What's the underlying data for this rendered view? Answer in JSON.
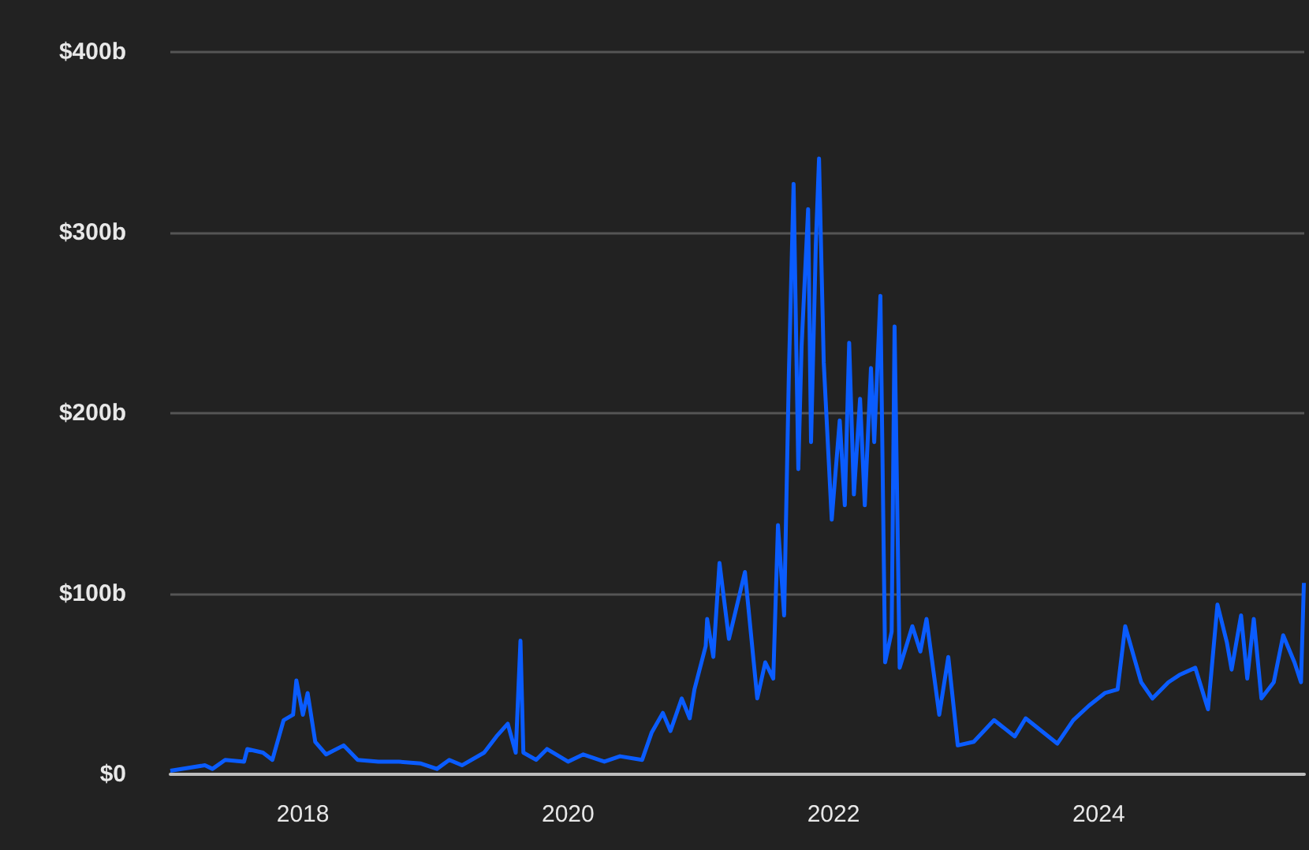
{
  "chart_data": {
    "type": "line",
    "x": [
      "2017-01-01",
      "2017-04-06",
      "2017-04-27",
      "2017-06-01",
      "2017-07-23",
      "2017-08-01",
      "2017-09-13",
      "2017-10-09",
      "2017-11-09",
      "2017-12-05",
      "2017-12-14",
      "2018-01-01",
      "2018-01-14",
      "2018-02-04",
      "2018-03-06",
      "2018-04-23",
      "2018-06-01",
      "2018-07-28",
      "2018-09-22",
      "2018-11-22",
      "2019-01-05",
      "2019-02-08",
      "2019-03-15",
      "2019-05-15",
      "2019-06-18",
      "2019-07-19",
      "2019-08-10",
      "2019-08-23",
      "2019-08-31",
      "2019-10-05",
      "2019-11-04",
      "2020-01-01",
      "2020-02-12",
      "2020-04-10",
      "2020-05-23",
      "2020-07-23",
      "2020-08-18",
      "2020-09-18",
      "2020-10-09",
      "2020-11-09",
      "2020-12-01",
      "2020-12-14",
      "2021-01-14",
      "2021-01-18",
      "2021-02-04",
      "2021-02-21",
      "2021-03-19",
      "2021-05-02",
      "2021-06-05",
      "2021-06-27",
      "2021-07-19",
      "2021-08-01",
      "2021-08-18",
      "2021-08-31",
      "2021-09-13",
      "2021-09-26",
      "2021-10-05",
      "2021-10-23",
      "2021-10-31",
      "2021-11-13",
      "2021-11-22",
      "2021-12-05",
      "2021-12-27",
      "2022-01-18",
      "2022-02-01",
      "2022-02-13",
      "2022-02-26",
      "2022-03-15",
      "2022-03-28",
      "2022-04-14",
      "2022-04-23",
      "2022-05-10",
      "2022-05-23",
      "2022-06-10",
      "2022-06-18",
      "2022-07-02",
      "2022-08-06",
      "2022-08-28",
      "2022-09-14",
      "2022-10-19",
      "2022-11-13",
      "2022-12-09",
      "2023-01-22",
      "2023-03-19",
      "2023-05-15",
      "2023-06-14",
      "2023-09-09",
      "2023-10-23",
      "2023-12-05",
      "2024-01-18",
      "2024-02-22",
      "2024-03-14",
      "2024-04-27",
      "2024-05-28",
      "2024-07-11",
      "2024-08-10",
      "2024-09-23",
      "2024-10-28",
      "2024-11-23",
      "2024-12-19",
      "2025-01-01",
      "2025-01-27",
      "2025-02-13",
      "2025-03-03",
      "2025-03-24",
      "2025-04-27",
      "2025-05-23",
      "2025-06-23",
      "2025-07-11",
      "2025-07-19"
    ],
    "series": [
      {
        "color": "#0a5cff",
        "values": [
          2,
          5,
          3,
          8,
          7,
          14,
          12,
          8,
          30,
          33,
          52,
          33,
          45,
          18,
          11,
          16,
          8,
          7,
          7,
          6,
          3,
          8,
          5,
          12,
          21,
          28,
          12,
          74,
          12,
          8,
          14,
          7,
          11,
          7,
          10,
          8,
          23,
          34,
          24,
          42,
          31,
          47,
          71,
          86,
          65,
          117,
          75,
          112,
          42,
          62,
          53,
          138,
          88,
          222,
          327,
          169,
          237,
          313,
          184,
          292,
          341,
          228,
          141,
          196,
          149,
          239,
          155,
          208,
          149,
          225,
          184,
          265,
          62,
          79,
          248,
          59,
          82,
          68,
          86,
          33,
          65,
          16,
          18,
          30,
          21,
          31,
          17,
          30,
          38,
          45,
          47,
          82,
          51,
          42,
          51,
          55,
          59,
          36,
          94,
          73,
          58,
          88,
          53,
          86,
          42,
          51,
          77,
          62,
          51,
          106
        ]
      }
    ],
    "xlim": [
      "2017-01-01",
      "2025-07-20"
    ],
    "xticks": [
      {
        "value": "2018-01-01",
        "label": "2018"
      },
      {
        "value": "2020-01-01",
        "label": "2020"
      },
      {
        "value": "2022-01-01",
        "label": "2022"
      },
      {
        "value": "2024-01-01",
        "label": "2024"
      }
    ],
    "ylim": [
      0,
      400
    ],
    "yticks": [
      {
        "value": 0,
        "label": "$0"
      },
      {
        "value": 100,
        "label": "$100b"
      },
      {
        "value": 200,
        "label": "$200b"
      },
      {
        "value": 300,
        "label": "$300b"
      },
      {
        "value": 400,
        "label": "$400b"
      }
    ],
    "grid": "y",
    "marker": "none",
    "line_style": "solid"
  }
}
